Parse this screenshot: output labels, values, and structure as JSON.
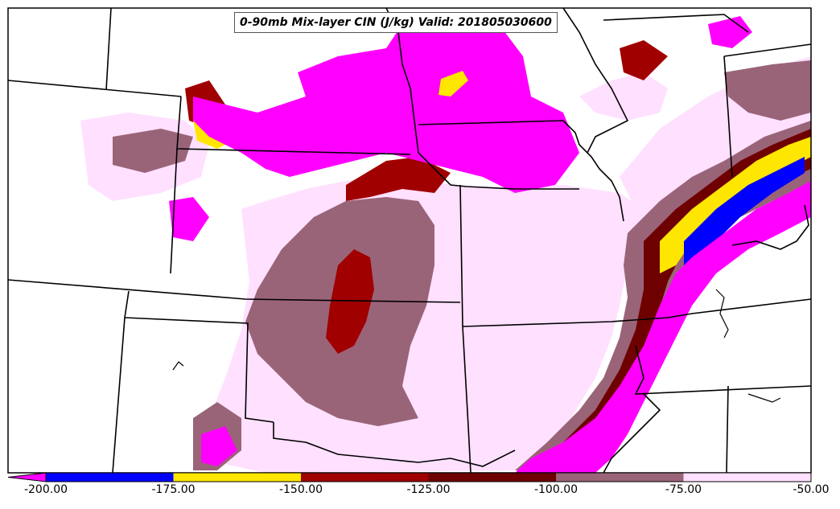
{
  "title": "0-90mb Mix-layer CIN (J/kg) Valid: 201805030600",
  "colorbar": {
    "bins": [
      {
        "from": -200,
        "to": -175,
        "color": "#0000ff"
      },
      {
        "from": -175,
        "to": -150,
        "color": "#ffe600"
      },
      {
        "from": -150,
        "to": -125,
        "color": "#a00000"
      },
      {
        "from": -125,
        "to": -100,
        "color": "#6e0000"
      },
      {
        "from": -100,
        "to": -75,
        "color": "#9a6478"
      },
      {
        "from": -75,
        "to": -50,
        "color": "#ffe0ff"
      }
    ],
    "under_color": "#ff00ff",
    "labels": [
      "-200.00",
      "-175.00",
      "-150.00",
      "-125.00",
      "-100.00",
      "-75.00",
      "-50.00"
    ]
  },
  "colors": {
    "le_minus_200": "#ff00ff",
    "minus_200_to_175": "#0000ff",
    "minus_175_to_150": "#ffe600",
    "minus_150_to_125": "#a00000",
    "minus_125_to_100": "#6e0000",
    "minus_100_to_75": "#9a6478",
    "minus_75_to_50": "#ffe0ff",
    "boundaries": "#000000"
  }
}
